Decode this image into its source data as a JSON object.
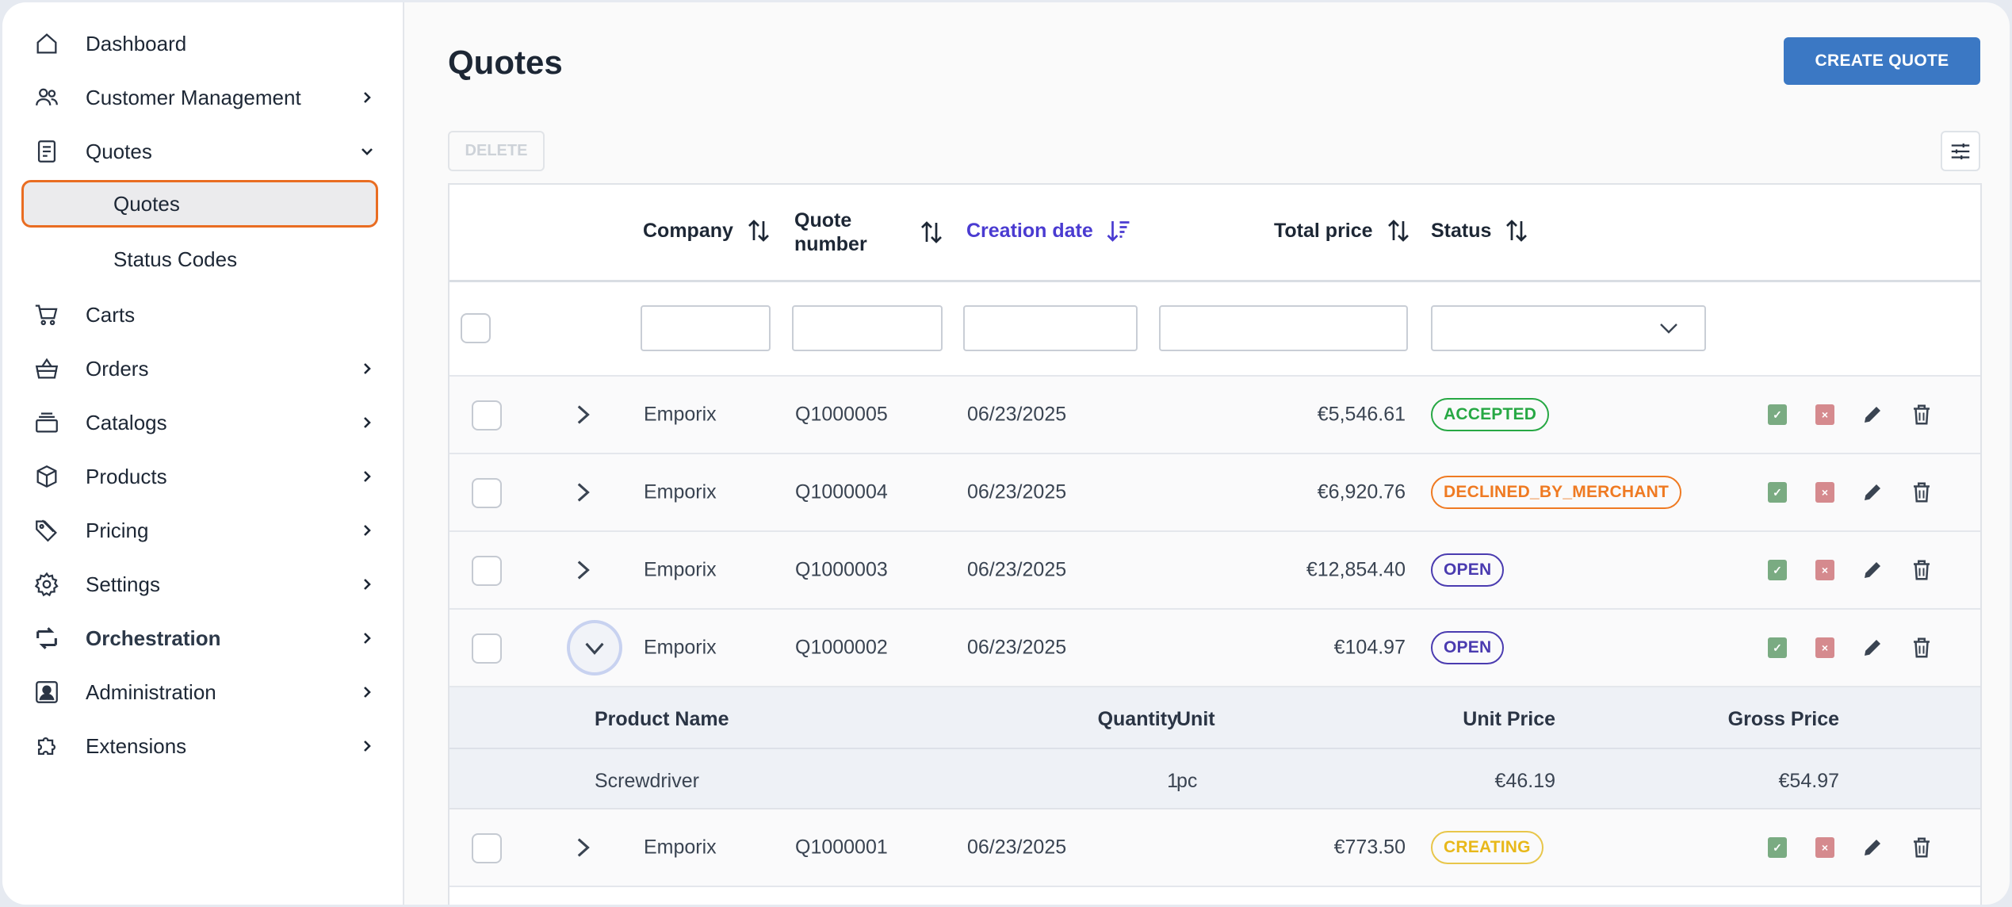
{
  "sidebar": {
    "items": [
      {
        "label": "Dashboard",
        "icon": "home-icon"
      },
      {
        "label": "Customer Management",
        "icon": "users-icon"
      },
      {
        "label": "Quotes",
        "icon": "document-icon"
      },
      {
        "label": "Carts",
        "icon": "cart-icon"
      },
      {
        "label": "Orders",
        "icon": "basket-icon"
      },
      {
        "label": "Catalogs",
        "icon": "stack-icon"
      },
      {
        "label": "Products",
        "icon": "box-icon"
      },
      {
        "label": "Pricing",
        "icon": "tag-icon"
      },
      {
        "label": "Settings",
        "icon": "gear-icon"
      },
      {
        "label": "Orchestration",
        "icon": "flow-icon"
      },
      {
        "label": "Administration",
        "icon": "admin-icon"
      },
      {
        "label": "Extensions",
        "icon": "puzzle-icon"
      }
    ],
    "sub_items": [
      {
        "label": "Quotes",
        "active": true
      },
      {
        "label": "Status Codes",
        "active": false
      }
    ]
  },
  "page": {
    "title": "Quotes",
    "create_label": "CREATE QUOTE",
    "delete_label": "DELETE"
  },
  "table": {
    "columns": {
      "company": "Company",
      "quote_number": "Quote number",
      "creation_date": "Creation date",
      "total_price": "Total price",
      "status": "Status"
    },
    "rows": [
      {
        "company": "Emporix",
        "quote": "Q1000005",
        "date": "06/23/2025",
        "price": "€5,546.61",
        "status": "ACCEPTED"
      },
      {
        "company": "Emporix",
        "quote": "Q1000004",
        "date": "06/23/2025",
        "price": "€6,920.76",
        "status": "DECLINED_BY_MERCHANT"
      },
      {
        "company": "Emporix",
        "quote": "Q1000003",
        "date": "06/23/2025",
        "price": "€12,854.40",
        "status": "OPEN"
      },
      {
        "company": "Emporix",
        "quote": "Q1000002",
        "date": "06/23/2025",
        "price": "€104.97",
        "status": "OPEN"
      },
      {
        "company": "Emporix",
        "quote": "Q1000001",
        "date": "06/23/2025",
        "price": "€773.50",
        "status": "CREATING"
      }
    ],
    "detail": {
      "headers": {
        "product_name": "Product Name",
        "quantity": "Quantity",
        "unit": "Unit",
        "unit_price": "Unit Price",
        "gross_price": "Gross Price"
      },
      "rows": [
        {
          "product_name": "Screwdriver",
          "quantity": "1",
          "unit": "pc",
          "unit_price": "€46.19",
          "gross_price": "€54.97"
        }
      ]
    }
  },
  "colors": {
    "accent": "#3b78c4",
    "active_sort": "#4a3bd1",
    "active_outline": "#e96d22",
    "accepted": "#27a844",
    "declined": "#ef7a22",
    "open": "#4a3bb0",
    "creating": "#e8b81a"
  }
}
